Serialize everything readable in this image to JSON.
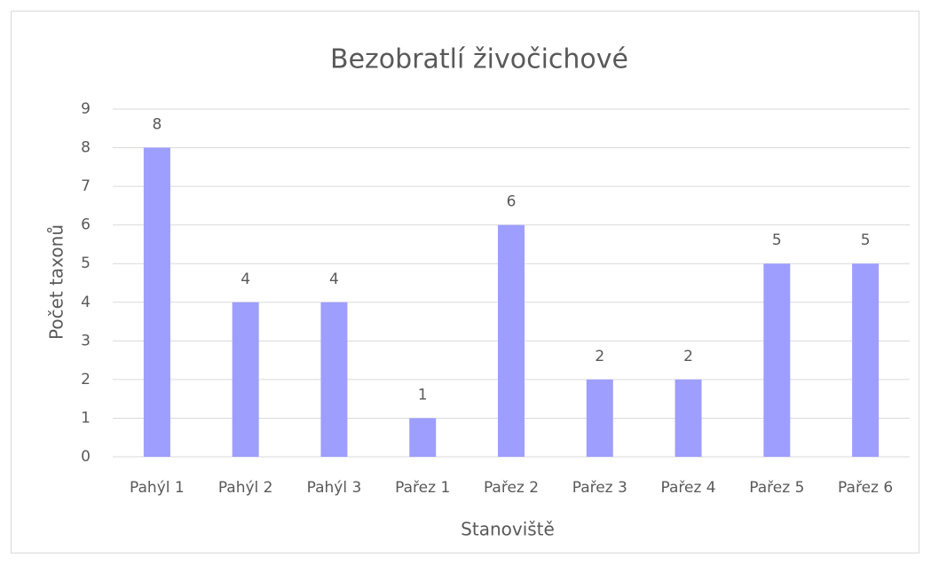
{
  "chart_data": {
    "type": "bar",
    "title": "Bezobratlí živočichové",
    "x_label": "Stanoviště",
    "y_label": "Počet taxonů",
    "categories": [
      "Pahýl 1",
      "Pahýl 2",
      "Pahýl 3",
      "Pařez 1",
      "Pařez 2",
      "Pařez 3",
      "Pařez 4",
      "Pařez 5",
      "Pařez 6"
    ],
    "values": [
      8,
      4,
      4,
      1,
      6,
      2,
      2,
      5,
      5
    ],
    "color": "#9e9eff",
    "ylim": [
      0,
      9
    ],
    "yticks": [
      0,
      1,
      2,
      3,
      4,
      5,
      6,
      7,
      8,
      9
    ],
    "grid": true
  }
}
